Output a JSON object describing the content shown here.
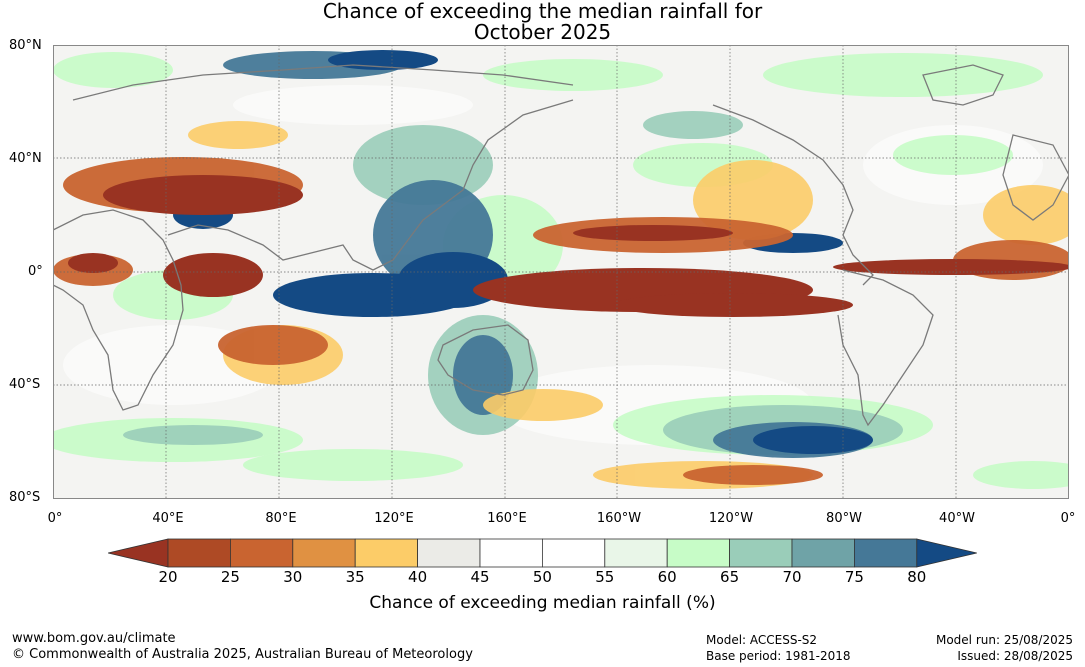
{
  "title": {
    "line1": "Chance of exceeding the median rainfall for",
    "line2": "October 2025"
  },
  "lat_labels": [
    "80°N",
    "40°N",
    "0°",
    "40°S",
    "80°S"
  ],
  "lon_labels": [
    "0°",
    "40°E",
    "80°E",
    "120°E",
    "160°E",
    "160°W",
    "120°W",
    "80°W",
    "40°W",
    "0°"
  ],
  "colorbar": {
    "label": "Chance of exceeding median rainfall (%)",
    "ticks": [
      "20",
      "25",
      "30",
      "35",
      "40",
      "45",
      "50",
      "55",
      "60",
      "65",
      "70",
      "75",
      "80"
    ],
    "under_color": "#993322",
    "bins": [
      "#ae4a25",
      "#c96430",
      "#e09142",
      "#fccc68",
      "#ebebe7",
      "#ffffff",
      "#ffffff",
      "#e9f6e8",
      "#c7fcc7",
      "#9acdb9",
      "#6fa3a7",
      "#457897"
    ],
    "over_color": "#144a84"
  },
  "footer": {
    "url": "www.bom.gov.au/climate",
    "copyright": "© Commonwealth of Australia 2025, Australian Bureau of Meteorology",
    "model": "Model: ACCESS-S2",
    "base_period": "Base period: 1981-2018",
    "model_run": "Model run: 25/08/2025",
    "issued": "Issued: 28/08/2025"
  }
}
